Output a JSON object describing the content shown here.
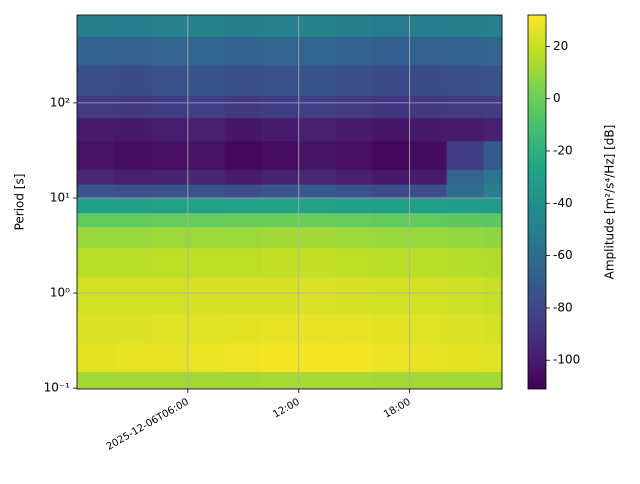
{
  "chart_data": {
    "type": "spectrogram",
    "x_edges": [
      "2025-12-06T00:00",
      "2025-12-06T02:00",
      "2025-12-06T04:00",
      "2025-12-06T06:00",
      "2025-12-06T08:00",
      "2025-12-06T10:00",
      "2025-12-06T12:00",
      "2025-12-06T14:00",
      "2025-12-06T16:00",
      "2025-12-06T18:00",
      "2025-12-06T20:00",
      "2025-12-06T22:00",
      "2025-12-06T23:00"
    ],
    "y_edges": [
      0.098,
      0.15,
      0.3,
      0.6,
      1.5,
      3,
      5,
      7,
      10,
      14,
      20,
      40,
      70,
      120,
      250,
      500,
      840
    ],
    "values": [
      [
        12,
        12,
        12,
        12,
        12,
        13,
        13,
        13,
        12,
        12,
        12,
        12
      ],
      [
        26,
        27,
        27,
        28,
        29,
        30,
        30,
        30,
        28,
        27,
        26,
        25
      ],
      [
        24,
        24,
        25,
        25,
        26,
        27,
        27,
        27,
        26,
        25,
        24,
        23
      ],
      [
        22,
        22,
        22,
        23,
        23,
        23,
        24,
        23,
        22,
        22,
        21,
        20
      ],
      [
        17,
        17,
        18,
        18,
        18,
        19,
        19,
        18,
        17,
        17,
        16,
        15
      ],
      [
        10,
        10,
        11,
        11,
        11,
        12,
        12,
        11,
        10,
        10,
        9,
        8
      ],
      [
        -2,
        -2,
        -1,
        -1,
        0,
        0,
        0,
        -1,
        -2,
        -2,
        -3,
        -4
      ],
      [
        -30,
        -30,
        -29,
        -29,
        -28,
        -28,
        -29,
        -30,
        -31,
        -31,
        -32,
        -33
      ],
      [
        -72,
        -75,
        -74,
        -73,
        -76,
        -72,
        -70,
        -74,
        -78,
        -76,
        -60,
        -50
      ],
      [
        -95,
        -98,
        -97,
        -96,
        -100,
        -97,
        -95,
        -98,
        -101,
        -100,
        -65,
        -55
      ],
      [
        -104,
        -106,
        -105,
        -104,
        -108,
        -106,
        -103,
        -105,
        -108,
        -107,
        -85,
        -70
      ],
      [
        -100,
        -101,
        -99,
        -98,
        -102,
        -100,
        -98,
        -100,
        -102,
        -101,
        -100,
        -98
      ],
      [
        -86,
        -87,
        -85,
        -84,
        -87,
        -85,
        -84,
        -86,
        -88,
        -87,
        -86,
        -85
      ],
      [
        -76,
        -77,
        -75,
        -74,
        -76,
        -75,
        -74,
        -76,
        -78,
        -77,
        -76,
        -75
      ],
      [
        -66,
        -67,
        -65,
        -64,
        -66,
        -65,
        -64,
        -66,
        -68,
        -67,
        -66,
        -65
      ],
      [
        -50,
        -51,
        -49,
        -48,
        -50,
        -49,
        -48,
        -50,
        -52,
        -51,
        -50,
        -49
      ]
    ],
    "xlim": [
      "2025-12-06T00:00",
      "2025-12-06T23:00"
    ],
    "xticks": [
      "2025-12-06T06:00",
      {
        "value": "2025-12-06T12:00",
        "label": "12:00"
      },
      {
        "value": "2025-12-06T18:00",
        "label": "18:00"
      }
    ],
    "ylim": [
      0.098,
      840
    ],
    "yscale": "log",
    "yticks": [
      {
        "value": 0.1,
        "label": "10⁻¹"
      },
      {
        "value": 1,
        "label": "10⁰"
      },
      {
        "value": 10,
        "label": "10¹"
      },
      {
        "value": 100,
        "label": "10²"
      }
    ],
    "ylabel": "Period [s]",
    "colormap": "viridis",
    "clim": [
      -111,
      32
    ],
    "cticks": [
      -100,
      -80,
      -60,
      -40,
      -20,
      0,
      20
    ],
    "clabel": "Amplitude [m²/s⁴/Hz] [dB]",
    "grid": true
  }
}
